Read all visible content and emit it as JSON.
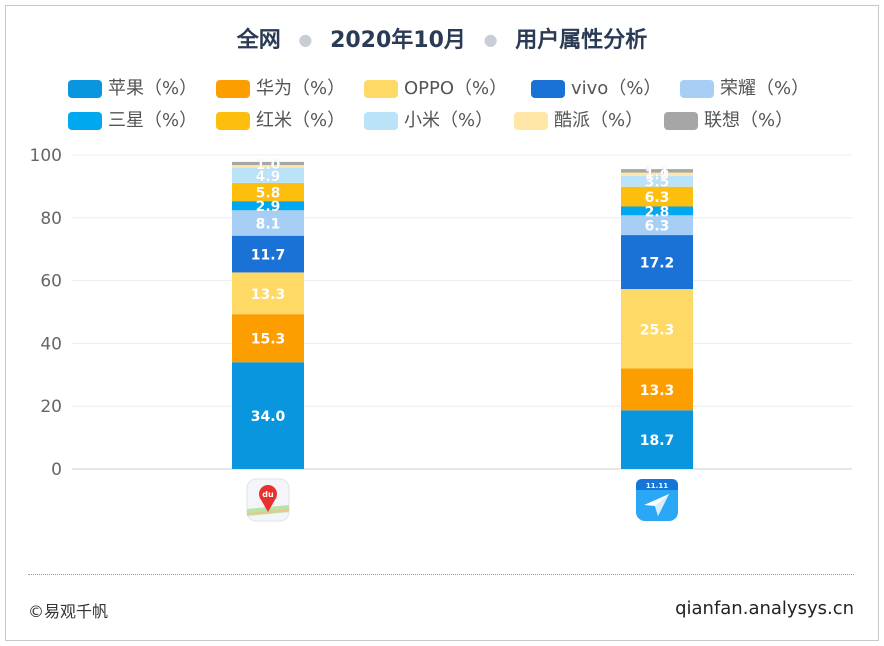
{
  "title": {
    "parts": [
      "全网",
      "2020年10月",
      "用户属性分析"
    ]
  },
  "footer": {
    "left": "©易观千帆",
    "right": "qianfan.analysys.cn"
  },
  "chart_data": {
    "type": "bar",
    "stacked": true,
    "categories": [
      "百度地图",
      "腾讯地图"
    ],
    "category_icons": [
      "baidu-maps-app-icon",
      "tencent-maps-app-icon"
    ],
    "ylim": [
      0,
      100
    ],
    "yticks": [
      0,
      20,
      40,
      60,
      80,
      100
    ],
    "grid": true,
    "legend_position": "top",
    "series": [
      {
        "name": "苹果（%）",
        "color": "#0A96DE",
        "values": [
          34.0,
          18.7
        ]
      },
      {
        "name": "华为（%）",
        "color": "#FC9D00",
        "values": [
          15.3,
          13.3
        ]
      },
      {
        "name": "OPPO（%）",
        "color": "#FFD966",
        "values": [
          13.3,
          25.3
        ]
      },
      {
        "name": "vivo（%）",
        "color": "#1A72D6",
        "values": [
          11.7,
          17.2
        ]
      },
      {
        "name": "荣耀（%）",
        "color": "#A7CFF6",
        "values": [
          8.1,
          6.3
        ]
      },
      {
        "name": "三星（%）",
        "color": "#00A8F0",
        "values": [
          2.9,
          2.8
        ]
      },
      {
        "name": "红米（%）",
        "color": "#FDBE0D",
        "values": [
          5.8,
          6.3
        ]
      },
      {
        "name": "小米（%）",
        "color": "#BBE3F8",
        "values": [
          4.9,
          3.5
        ]
      },
      {
        "name": "酷派（%）",
        "color": "#FFE7A7",
        "values": [
          0.8,
          1.0
        ]
      },
      {
        "name": "联想（%）",
        "color": "#A6A6A6",
        "values": [
          1.0,
          1.1
        ]
      }
    ]
  }
}
